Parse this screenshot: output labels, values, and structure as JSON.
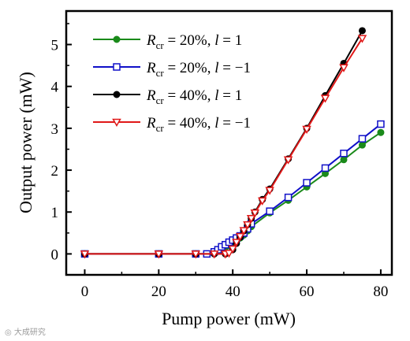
{
  "chart_data": {
    "type": "line",
    "xlabel": "Pump power (mW)",
    "ylabel": "Output power (mW)",
    "xlim": [
      -5,
      83
    ],
    "ylim": [
      -0.5,
      5.8
    ],
    "xticks": [
      0,
      20,
      40,
      60,
      80
    ],
    "yticks": [
      0,
      1,
      2,
      3,
      4,
      5
    ],
    "grid": false,
    "legend_position": "top-left",
    "series": [
      {
        "name_parts": {
          "sym": "R",
          "sub": "cr",
          "eq": " = 20%, ",
          "l": "l",
          "lv": " = 1"
        },
        "color": "#1a8a1a",
        "marker": "circle",
        "x": [
          0,
          20,
          30,
          33,
          35,
          37,
          38,
          39,
          40,
          41,
          42,
          43,
          44,
          45,
          50,
          55,
          60,
          65,
          70,
          75,
          80
        ],
        "y": [
          0,
          0,
          0,
          0,
          0.05,
          0.1,
          0.15,
          0.2,
          0.25,
          0.3,
          0.38,
          0.45,
          0.55,
          0.65,
          0.98,
          1.28,
          1.6,
          1.92,
          2.25,
          2.6,
          2.9
        ]
      },
      {
        "name_parts": {
          "sym": "R",
          "sub": "cr",
          "eq": " = 20%, ",
          "l": "l",
          "lv": " = −1"
        },
        "color": "#1010c8",
        "marker": "square-open",
        "x": [
          0,
          20,
          30,
          33,
          35,
          36,
          37,
          38,
          39,
          40,
          41,
          42,
          43,
          44,
          45,
          50,
          55,
          60,
          65,
          70,
          75,
          80
        ],
        "y": [
          0,
          0,
          0,
          0,
          0.05,
          0.1,
          0.17,
          0.22,
          0.28,
          0.33,
          0.38,
          0.43,
          0.5,
          0.6,
          0.72,
          1.02,
          1.35,
          1.7,
          2.05,
          2.4,
          2.75,
          3.1
        ]
      },
      {
        "name_parts": {
          "sym": "R",
          "sub": "cr",
          "eq": " = 40%, ",
          "l": "l",
          "lv": " = 1"
        },
        "color": "#000000",
        "marker": "circle",
        "x": [
          0,
          20,
          30,
          35,
          38,
          40,
          41,
          42,
          43,
          44,
          45,
          46,
          48,
          50,
          55,
          60,
          65,
          70,
          75
        ],
        "y": [
          0,
          0,
          0,
          0,
          0,
          0.1,
          0.25,
          0.4,
          0.55,
          0.7,
          0.85,
          1.0,
          1.3,
          1.55,
          2.27,
          3.0,
          3.78,
          4.55,
          5.33
        ]
      },
      {
        "name_parts": {
          "sym": "R",
          "sub": "cr",
          "eq": " = 40%, ",
          "l": "l",
          "lv": " = −1"
        },
        "color": "#e01818",
        "marker": "triangle-down-open",
        "x": [
          0,
          20,
          30,
          35,
          38,
          39,
          40,
          41,
          42,
          43,
          44,
          45,
          46,
          48,
          50,
          55,
          60,
          65,
          70,
          75
        ],
        "y": [
          0,
          0,
          0,
          0,
          0,
          0.02,
          0.12,
          0.28,
          0.42,
          0.56,
          0.7,
          0.85,
          0.98,
          1.27,
          1.52,
          2.25,
          2.98,
          3.72,
          4.45,
          5.15
        ]
      }
    ]
  }
}
